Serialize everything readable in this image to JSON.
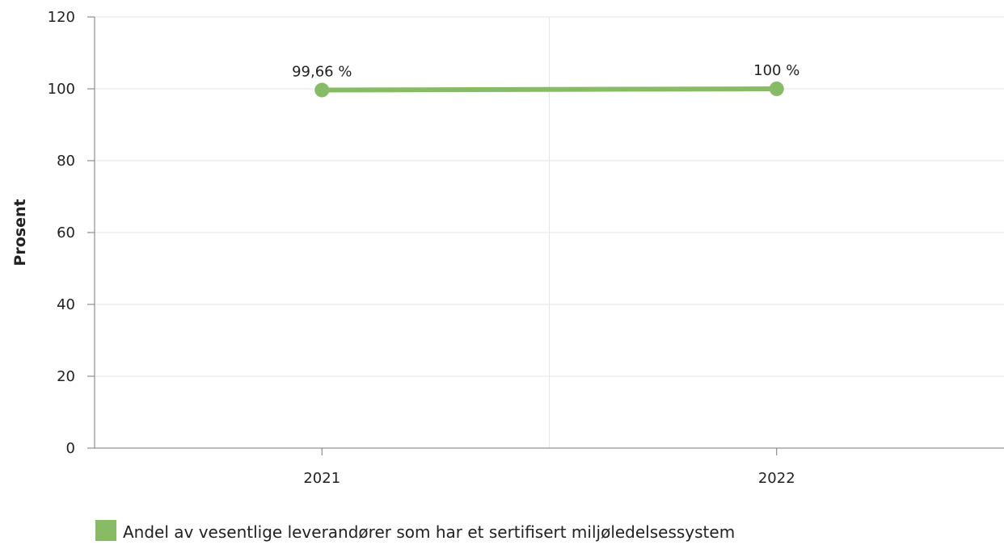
{
  "chart_data": {
    "type": "line",
    "categories": [
      "2021",
      "2022"
    ],
    "series": [
      {
        "name": "Andel av vesentlige leverandører som har et sertifisert miljøledelsessystem",
        "values": [
          99.66,
          100
        ],
        "data_labels": [
          "99,66 %",
          "100 %"
        ],
        "color": "#88bb66"
      }
    ],
    "ylabel": "Prosent",
    "xlabel": "",
    "ylim": [
      0,
      120
    ],
    "yticks": [
      "0",
      "20",
      "40",
      "60",
      "80",
      "100",
      "120"
    ],
    "grid": true,
    "legend_position": "bottom-left"
  },
  "colors": {
    "series": "#88bb66",
    "grid": "#e6e6e6",
    "axis": "#777777",
    "text": "#222222"
  }
}
